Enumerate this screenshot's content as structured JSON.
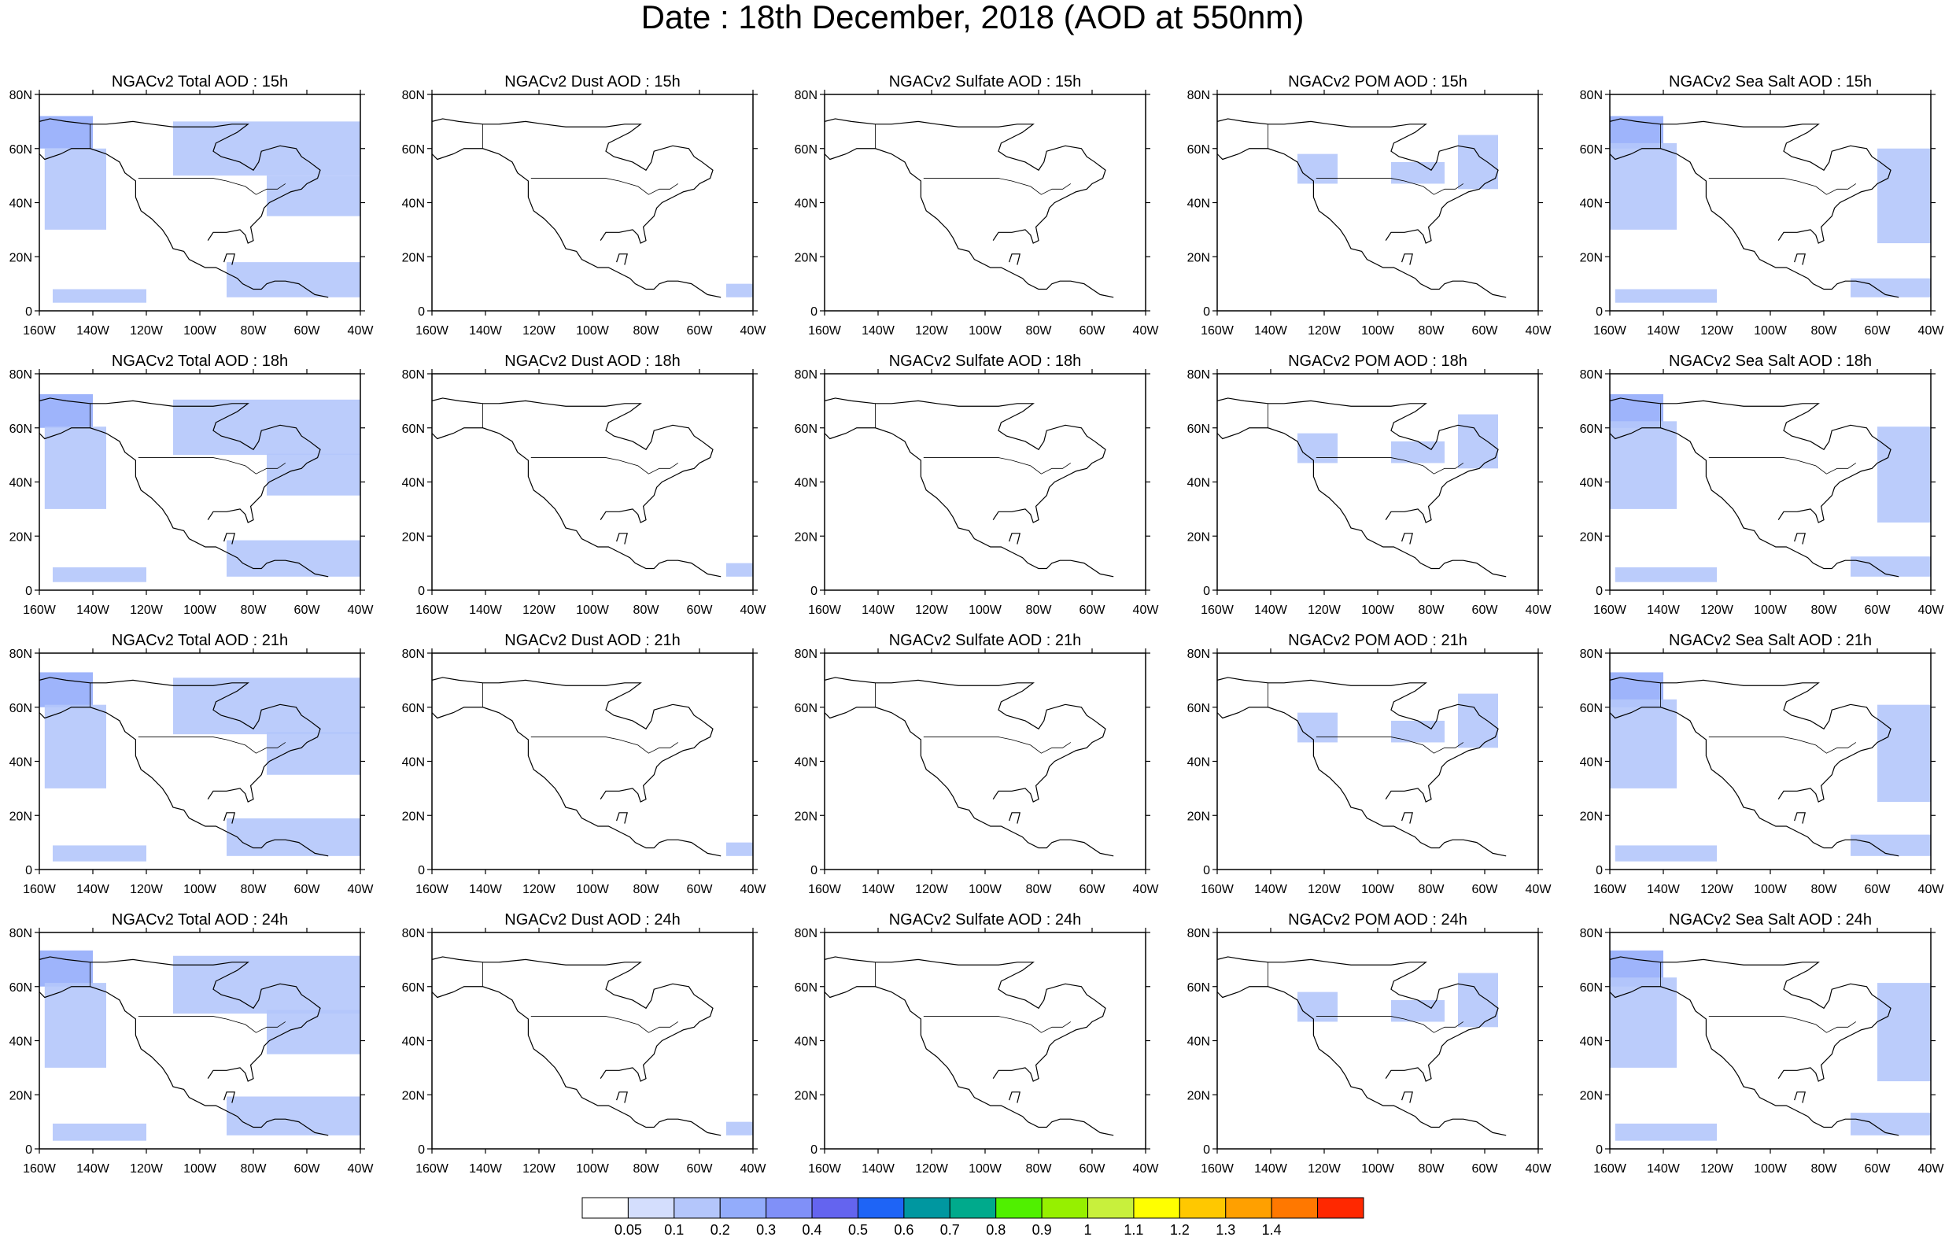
{
  "title": "Date : 18th December, 2018 (AOD at 550nm)",
  "lat_ticks": [
    "80N",
    "60N",
    "40N",
    "20N",
    "0"
  ],
  "lon_ticks": [
    "160W",
    "140W",
    "120W",
    "100W",
    "80W",
    "60W",
    "40W"
  ],
  "species": [
    {
      "id": "total",
      "name": "Total AOD"
    },
    {
      "id": "dust",
      "name": "Dust AOD"
    },
    {
      "id": "sulfate",
      "name": "Sulfate AOD"
    },
    {
      "id": "pom",
      "name": "POM AOD"
    },
    {
      "id": "seasalt",
      "name": "Sea Salt AOD"
    }
  ],
  "hours": [
    "15h",
    "18h",
    "21h",
    "24h"
  ],
  "panels": [
    [
      "NGACv2 Total AOD : 15h",
      "NGACv2 Dust AOD : 15h",
      "NGACv2 Sulfate AOD : 15h",
      "NGACv2 POM AOD : 15h",
      "NGACv2 Sea Salt AOD : 15h"
    ],
    [
      "NGACv2 Total AOD : 18h",
      "NGACv2 Dust AOD : 18h",
      "NGACv2 Sulfate AOD : 18h",
      "NGACv2 POM AOD : 18h",
      "NGACv2 Sea Salt AOD : 18h"
    ],
    [
      "NGACv2 Total AOD : 21h",
      "NGACv2 Dust AOD : 21h",
      "NGACv2 Sulfate AOD : 21h",
      "NGACv2 POM AOD : 21h",
      "NGACv2 Sea Salt AOD : 21h"
    ],
    [
      "NGACv2 Total AOD : 24h",
      "NGACv2 Dust AOD : 24h",
      "NGACv2 Sulfate AOD : 24h",
      "NGACv2 POM AOD : 24h",
      "NGACv2 Sea Salt  AOD : 24h"
    ]
  ],
  "colorbar": {
    "colors": [
      "#ffffff",
      "#d4defd",
      "#b4c6fb",
      "#93acfb",
      "#8090f8",
      "#6464ef",
      "#1e64f6",
      "#0097a0",
      "#00aa8c",
      "#50f000",
      "#96f000",
      "#c8f03c",
      "#ffff00",
      "#ffc800",
      "#ffa000",
      "#ff7800",
      "#ff2800"
    ],
    "labels": [
      "0.05",
      "0.1",
      "0.2",
      "0.3",
      "0.4",
      "0.5",
      "0.6",
      "0.7",
      "0.8",
      "0.9",
      "1",
      "1.1",
      "1.2",
      "1.3",
      "1.4"
    ]
  },
  "chart_data": {
    "type": "heatmap",
    "title": "Date : 18th December, 2018 (AOD at 550nm)",
    "lon_range": [
      -160,
      -40
    ],
    "lat_range": [
      0,
      80
    ],
    "lon_ticks": [
      "160W",
      "140W",
      "120W",
      "100W",
      "80W",
      "60W",
      "40W"
    ],
    "lat_ticks": [
      "80N",
      "60N",
      "40N",
      "20N",
      "0"
    ],
    "colorbar_levels": [
      0.05,
      0.1,
      0.2,
      0.3,
      0.4,
      0.5,
      0.6,
      0.7,
      0.8,
      0.9,
      1,
      1.1,
      1.2,
      1.3,
      1.4
    ],
    "aod_fields": {
      "total": [
        {
          "lon": [
            -160,
            -140
          ],
          "lat": [
            60,
            72
          ],
          "aod": 0.2
        },
        {
          "lon": [
            -158,
            -135
          ],
          "lat": [
            30,
            60
          ],
          "aod": 0.1
        },
        {
          "lon": [
            -110,
            -40
          ],
          "lat": [
            50,
            70
          ],
          "aod": 0.1
        },
        {
          "lon": [
            -75,
            -40
          ],
          "lat": [
            35,
            50
          ],
          "aod": 0.1
        },
        {
          "lon": [
            -90,
            -40
          ],
          "lat": [
            5,
            18
          ],
          "aod": 0.1
        },
        {
          "lon": [
            -155,
            -120
          ],
          "lat": [
            3,
            8
          ],
          "aod": 0.1
        }
      ],
      "dust": [
        {
          "lon": [
            -50,
            -40
          ],
          "lat": [
            5,
            10
          ],
          "aod": 0.1
        }
      ],
      "sulfate": [],
      "pom": [
        {
          "lon": [
            -130,
            -115
          ],
          "lat": [
            47,
            58
          ],
          "aod": 0.1
        },
        {
          "lon": [
            -95,
            -75
          ],
          "lat": [
            47,
            55
          ],
          "aod": 0.1
        },
        {
          "lon": [
            -70,
            -55
          ],
          "lat": [
            45,
            65
          ],
          "aod": 0.1
        }
      ],
      "seasalt": [
        {
          "lon": [
            -160,
            -140
          ],
          "lat": [
            60,
            72
          ],
          "aod": 0.2
        },
        {
          "lon": [
            -160,
            -135
          ],
          "lat": [
            30,
            62
          ],
          "aod": 0.1
        },
        {
          "lon": [
            -60,
            -40
          ],
          "lat": [
            25,
            60
          ],
          "aod": 0.1
        },
        {
          "lon": [
            -70,
            -40
          ],
          "lat": [
            5,
            12
          ],
          "aod": 0.1
        },
        {
          "lon": [
            -158,
            -120
          ],
          "lat": [
            3,
            8
          ],
          "aod": 0.1
        }
      ]
    }
  }
}
